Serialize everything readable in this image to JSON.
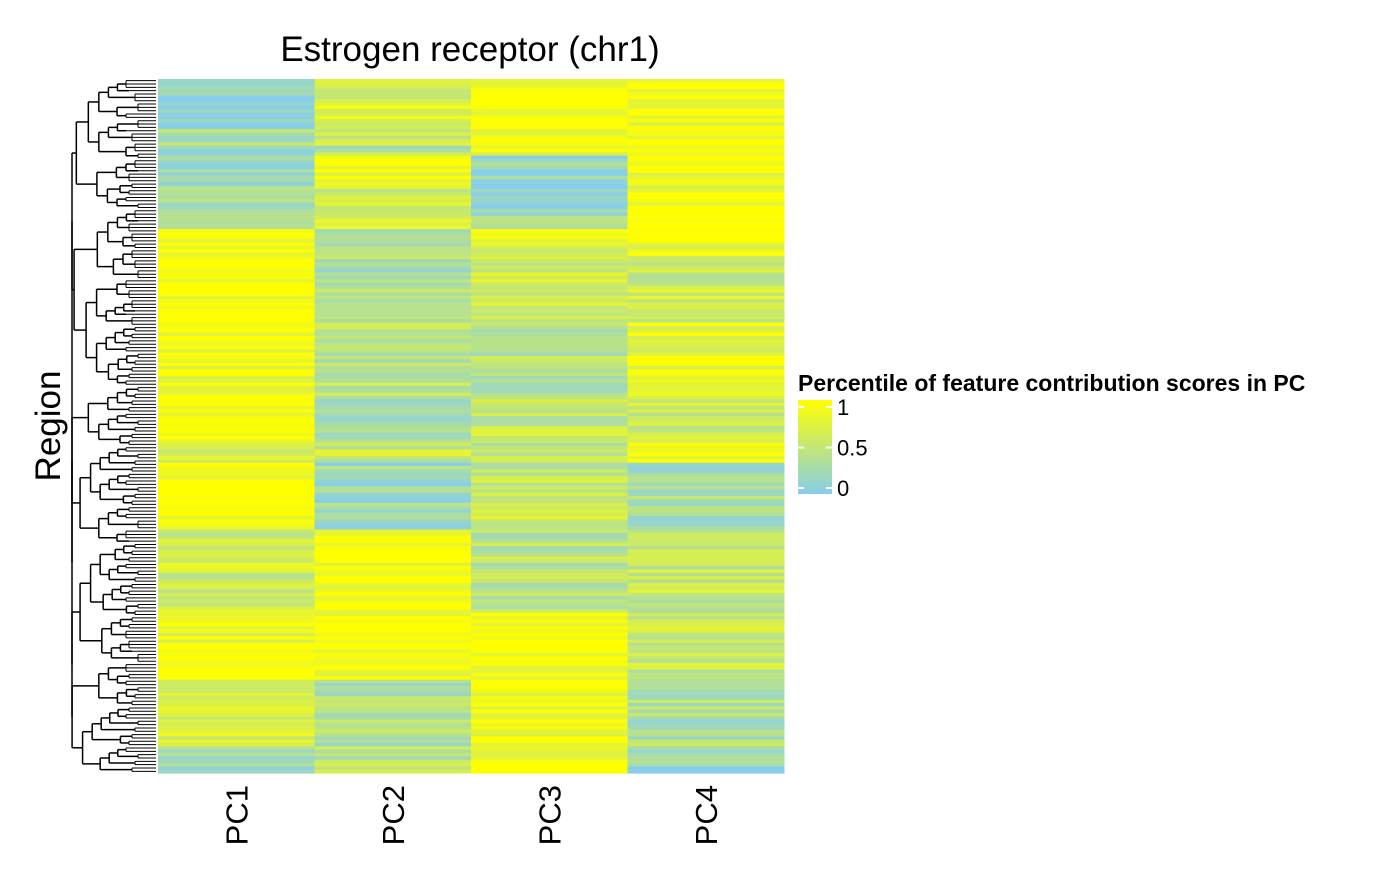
{
  "chart_data": {
    "type": "heatmap",
    "title": "Estrogen receptor (chr1)",
    "xlabel": "",
    "ylabel": "Region",
    "categories": [
      "PC1",
      "PC2",
      "PC3",
      "PC4"
    ],
    "legend": {
      "title": "Percentile of feature contribution scores in PC",
      "ticks": [
        1,
        0.5,
        0
      ],
      "tick_labels": [
        "1",
        "0.5",
        "0"
      ],
      "placement": "right",
      "colors": {
        "low": "#87CEEB",
        "high": "#FFFF00"
      }
    },
    "value_range": [
      0,
      1
    ],
    "row_dendrogram": true,
    "grid": false,
    "row_blocks": [
      {
        "rows": 15,
        "values": [
          0.15,
          0.7,
          0.98,
          0.9
        ]
      },
      {
        "rows": 5,
        "values": [
          0.3,
          0.55,
          0.8,
          0.95
        ]
      },
      {
        "rows": 3,
        "values": [
          0.2,
          0.4,
          0.9,
          0.9
        ]
      },
      {
        "rows": 10,
        "values": [
          0.25,
          0.95,
          0.15,
          0.95
        ]
      },
      {
        "rows": 12,
        "values": [
          0.35,
          0.6,
          0.25,
          0.98
        ]
      },
      {
        "rows": 8,
        "values": [
          0.95,
          0.4,
          0.75,
          0.92
        ]
      },
      {
        "rows": 20,
        "values": [
          0.98,
          0.35,
          0.65,
          0.6
        ]
      },
      {
        "rows": 22,
        "values": [
          0.95,
          0.45,
          0.4,
          0.85
        ]
      },
      {
        "rows": 14,
        "values": [
          0.98,
          0.25,
          0.55,
          0.6
        ]
      },
      {
        "rows": 6,
        "values": [
          0.75,
          0.55,
          0.5,
          0.98
        ]
      },
      {
        "rows": 20,
        "values": [
          0.99,
          0.2,
          0.55,
          0.3
        ]
      },
      {
        "rows": 25,
        "values": [
          0.6,
          0.98,
          0.45,
          0.55
        ]
      },
      {
        "rows": 20,
        "values": [
          0.85,
          0.95,
          0.97,
          0.55
        ]
      },
      {
        "rows": 20,
        "values": [
          0.7,
          0.35,
          0.95,
          0.35
        ]
      },
      {
        "rows": 8,
        "values": [
          0.2,
          0.45,
          0.9,
          0.15
        ]
      }
    ]
  }
}
